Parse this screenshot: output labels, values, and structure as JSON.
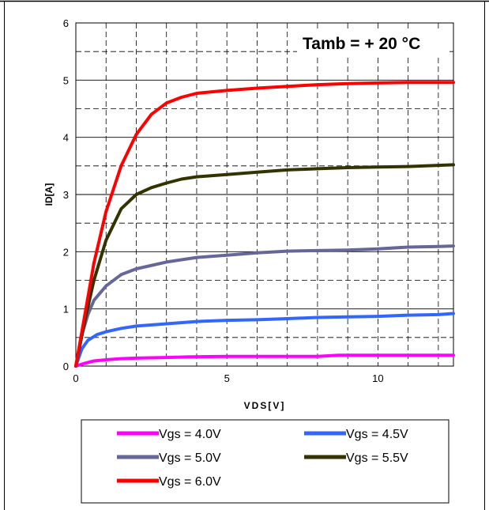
{
  "chart_data": {
    "type": "line",
    "title": "",
    "annotation": "Tamb = + 20 °C",
    "xlabel": "VDS[V]",
    "ylabel": "ID[A]",
    "xlim": [
      0,
      12.5
    ],
    "ylim": [
      0,
      6
    ],
    "x_ticks": [
      "0",
      "5",
      "10"
    ],
    "y_ticks": [
      "0",
      "1",
      "2",
      "3",
      "4",
      "5",
      "6"
    ],
    "grid": true,
    "legend_position": "bottom",
    "series": [
      {
        "name": "Vgs = 4.0V",
        "color": "#ff00ff",
        "points": [
          [
            0,
            0
          ],
          [
            0.3,
            0.05
          ],
          [
            0.6,
            0.09
          ],
          [
            1,
            0.11
          ],
          [
            1.5,
            0.13
          ],
          [
            2,
            0.14
          ],
          [
            3,
            0.15
          ],
          [
            3.7,
            0.16
          ],
          [
            5,
            0.17
          ],
          [
            6,
            0.17
          ],
          [
            7,
            0.17
          ],
          [
            8,
            0.17
          ],
          [
            8.7,
            0.19
          ],
          [
            9.5,
            0.19
          ],
          [
            10,
            0.19
          ],
          [
            11,
            0.19
          ],
          [
            12.5,
            0.19
          ]
        ]
      },
      {
        "name": "Vgs = 4.5V",
        "color": "#3366ff",
        "points": [
          [
            0,
            0
          ],
          [
            0.2,
            0.3
          ],
          [
            0.4,
            0.45
          ],
          [
            0.7,
            0.55
          ],
          [
            1,
            0.6
          ],
          [
            1.5,
            0.66
          ],
          [
            2,
            0.7
          ],
          [
            3,
            0.74
          ],
          [
            4,
            0.78
          ],
          [
            5,
            0.8
          ],
          [
            6,
            0.81
          ],
          [
            7,
            0.83
          ],
          [
            8,
            0.85
          ],
          [
            9,
            0.86
          ],
          [
            10,
            0.87
          ],
          [
            11,
            0.89
          ],
          [
            12,
            0.9
          ],
          [
            12.5,
            0.92
          ]
        ]
      },
      {
        "name": "Vgs = 5.0V",
        "color": "#666699",
        "points": [
          [
            0,
            0
          ],
          [
            0.2,
            0.55
          ],
          [
            0.4,
            0.9
          ],
          [
            0.6,
            1.15
          ],
          [
            1,
            1.4
          ],
          [
            1.5,
            1.6
          ],
          [
            2,
            1.7
          ],
          [
            3,
            1.82
          ],
          [
            4,
            1.9
          ],
          [
            5,
            1.94
          ],
          [
            6,
            1.98
          ],
          [
            7,
            2.01
          ],
          [
            8,
            2.02
          ],
          [
            9,
            2.03
          ],
          [
            10,
            2.05
          ],
          [
            11,
            2.08
          ],
          [
            12,
            2.09
          ],
          [
            12.5,
            2.1
          ]
        ]
      },
      {
        "name": "Vgs = 5.5V",
        "color": "#333300",
        "points": [
          [
            0,
            0
          ],
          [
            0.3,
            0.8
          ],
          [
            0.6,
            1.5
          ],
          [
            1,
            2.2
          ],
          [
            1.5,
            2.75
          ],
          [
            2,
            3.0
          ],
          [
            2.5,
            3.12
          ],
          [
            3,
            3.2
          ],
          [
            3.5,
            3.27
          ],
          [
            4,
            3.31
          ],
          [
            5,
            3.35
          ],
          [
            6,
            3.39
          ],
          [
            7,
            3.43
          ],
          [
            8,
            3.45
          ],
          [
            9,
            3.47
          ],
          [
            10,
            3.48
          ],
          [
            11,
            3.49
          ],
          [
            12,
            3.51
          ],
          [
            12.5,
            3.52
          ]
        ]
      },
      {
        "name": "Vgs = 6.0V",
        "color": "#ff0000",
        "points": [
          [
            0,
            0
          ],
          [
            0.3,
            0.9
          ],
          [
            0.6,
            1.8
          ],
          [
            1,
            2.7
          ],
          [
            1.5,
            3.5
          ],
          [
            2,
            4.05
          ],
          [
            2.5,
            4.4
          ],
          [
            3,
            4.6
          ],
          [
            3.5,
            4.7
          ],
          [
            4,
            4.77
          ],
          [
            5,
            4.82
          ],
          [
            6,
            4.86
          ],
          [
            7,
            4.89
          ],
          [
            8,
            4.92
          ],
          [
            9,
            4.94
          ],
          [
            10,
            4.95
          ],
          [
            11,
            4.96
          ],
          [
            12,
            4.96
          ],
          [
            12.5,
            4.96
          ]
        ]
      }
    ]
  }
}
